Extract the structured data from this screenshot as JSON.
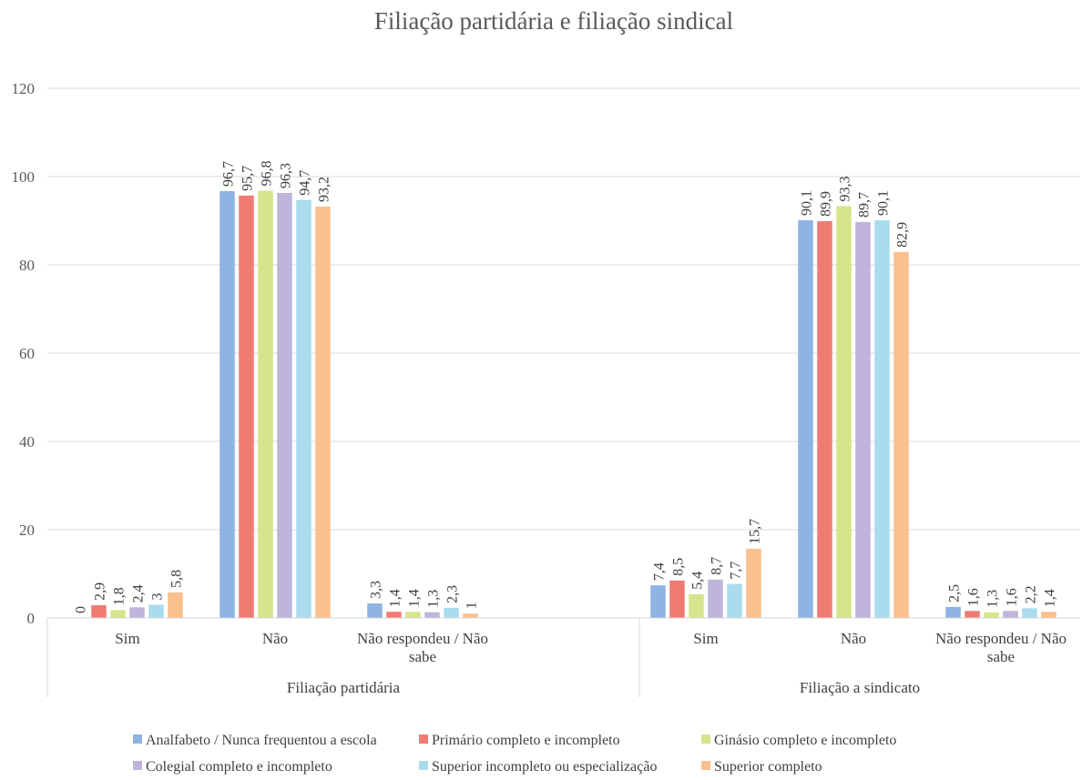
{
  "chart_data": {
    "type": "bar",
    "title": "Filiação partidária e filiação sindical",
    "xlabel": "",
    "ylabel": "",
    "ylim": [
      0,
      120
    ],
    "yticks": [
      0,
      20,
      40,
      60,
      80,
      100,
      120
    ],
    "grid": true,
    "legend_position": "bottom",
    "groups": [
      {
        "label": "Filiação partidária",
        "categories": [
          "Sim",
          "Não",
          "Não respondeu / Não sabe"
        ]
      },
      {
        "label": "Filiação a sindicato",
        "categories": [
          "Sim",
          "Não",
          "Não respondeu / Não sabe"
        ]
      }
    ],
    "series": [
      {
        "name": "Analfabeto / Nunca frequentou a escola",
        "color": "#8DB4E2",
        "values": [
          0,
          96.7,
          3.3,
          7.4,
          90.1,
          2.5
        ],
        "labels": [
          "0",
          "96,7",
          "3,3",
          "7,4",
          "90,1",
          "2,5"
        ]
      },
      {
        "name": "Primário completo e incompleto",
        "color": "#F07B72",
        "values": [
          2.9,
          95.7,
          1.4,
          8.5,
          89.9,
          1.6
        ],
        "labels": [
          "2,9",
          "95,7",
          "1,4",
          "8,5",
          "89,9",
          "1,6"
        ]
      },
      {
        "name": "Ginásio completo e incompleto",
        "color": "#D7E48C",
        "values": [
          1.8,
          96.8,
          1.4,
          5.4,
          93.3,
          1.3
        ],
        "labels": [
          "1,8",
          "96,8",
          "1,4",
          "5,4",
          "93,3",
          "1,3"
        ]
      },
      {
        "name": "Colegial completo e incompleto",
        "color": "#BFB4DA",
        "values": [
          2.4,
          96.3,
          1.3,
          8.7,
          89.7,
          1.6
        ],
        "labels": [
          "2,4",
          "96,3",
          "1,3",
          "8,7",
          "89,7",
          "1,6"
        ]
      },
      {
        "name": "Superior incompleto ou especialização",
        "color": "#A9DCEC",
        "values": [
          3,
          94.7,
          2.3,
          7.7,
          90.1,
          2.2
        ],
        "labels": [
          "3",
          "94,7",
          "2,3",
          "7,7",
          "90,1",
          "2,2"
        ]
      },
      {
        "name": "Superior completo",
        "color": "#FAC08F",
        "values": [
          5.8,
          93.2,
          1,
          15.7,
          82.9,
          1.4
        ],
        "labels": [
          "5,8",
          "93,2",
          "1",
          "15,7",
          "82,9",
          "1,4"
        ]
      }
    ]
  }
}
